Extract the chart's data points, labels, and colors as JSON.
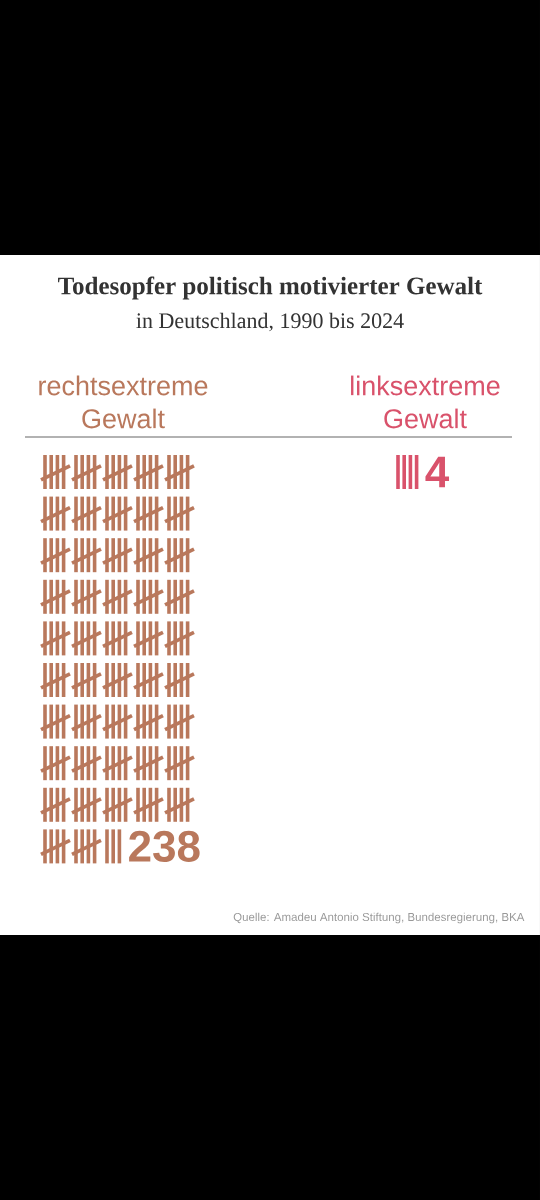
{
  "chart_data": {
    "type": "other",
    "title": "Todesopfer politisch motivierter Gewalt",
    "subtitle": "in Deutschland, 1990 bis 2024",
    "categories": [
      "rechtsextreme Gewalt",
      "linksextreme Gewalt"
    ],
    "values": [
      238,
      4
    ],
    "colors": [
      "#b9785c",
      "#d9526b"
    ],
    "data_labels": true,
    "annotations": [
      "Quelle: Amadeu Antonio Stiftung, Bundesregierung, BKA"
    ]
  }
}
